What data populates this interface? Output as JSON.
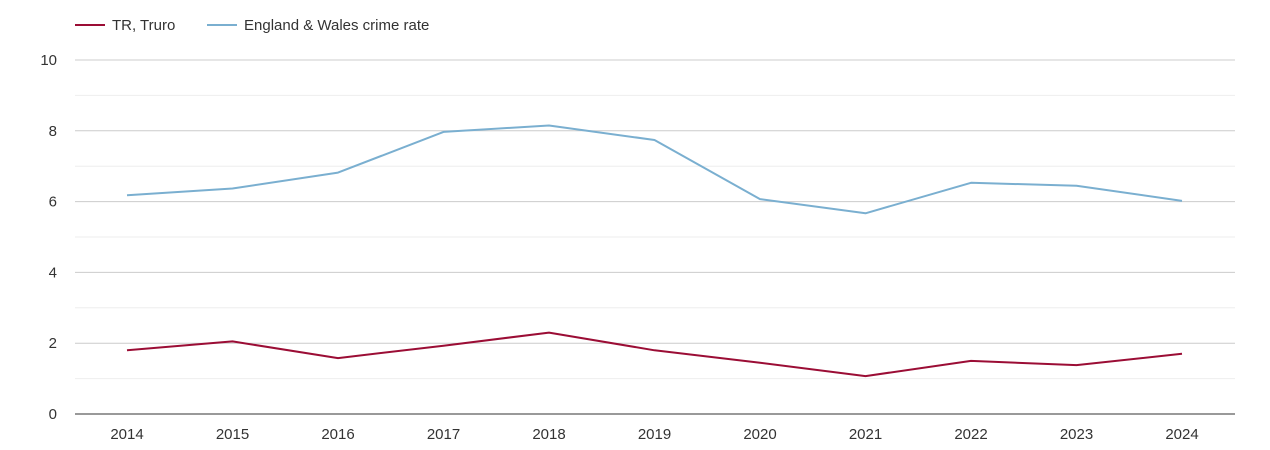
{
  "chart_data": {
    "type": "line",
    "title": "",
    "xlabel": "",
    "ylabel": "",
    "x": [
      "2014",
      "2015",
      "2016",
      "2017",
      "2018",
      "2019",
      "2020",
      "2021",
      "2022",
      "2023",
      "2024"
    ],
    "ylim": [
      0,
      10
    ],
    "yticks": [
      "0",
      "2",
      "4",
      "6",
      "8",
      "10"
    ],
    "grid": true,
    "legend_position": "top-left",
    "series": [
      {
        "name": "TR, Truro",
        "color": "#9b0d35",
        "values": [
          1.8,
          2.05,
          1.58,
          1.93,
          2.3,
          1.8,
          1.45,
          1.07,
          1.5,
          1.38,
          1.7
        ]
      },
      {
        "name": "England & Wales crime rate",
        "color": "#7aafd0",
        "values": [
          6.18,
          6.37,
          6.82,
          7.97,
          8.15,
          7.74,
          6.07,
          5.67,
          6.53,
          6.45,
          6.02
        ]
      }
    ]
  }
}
